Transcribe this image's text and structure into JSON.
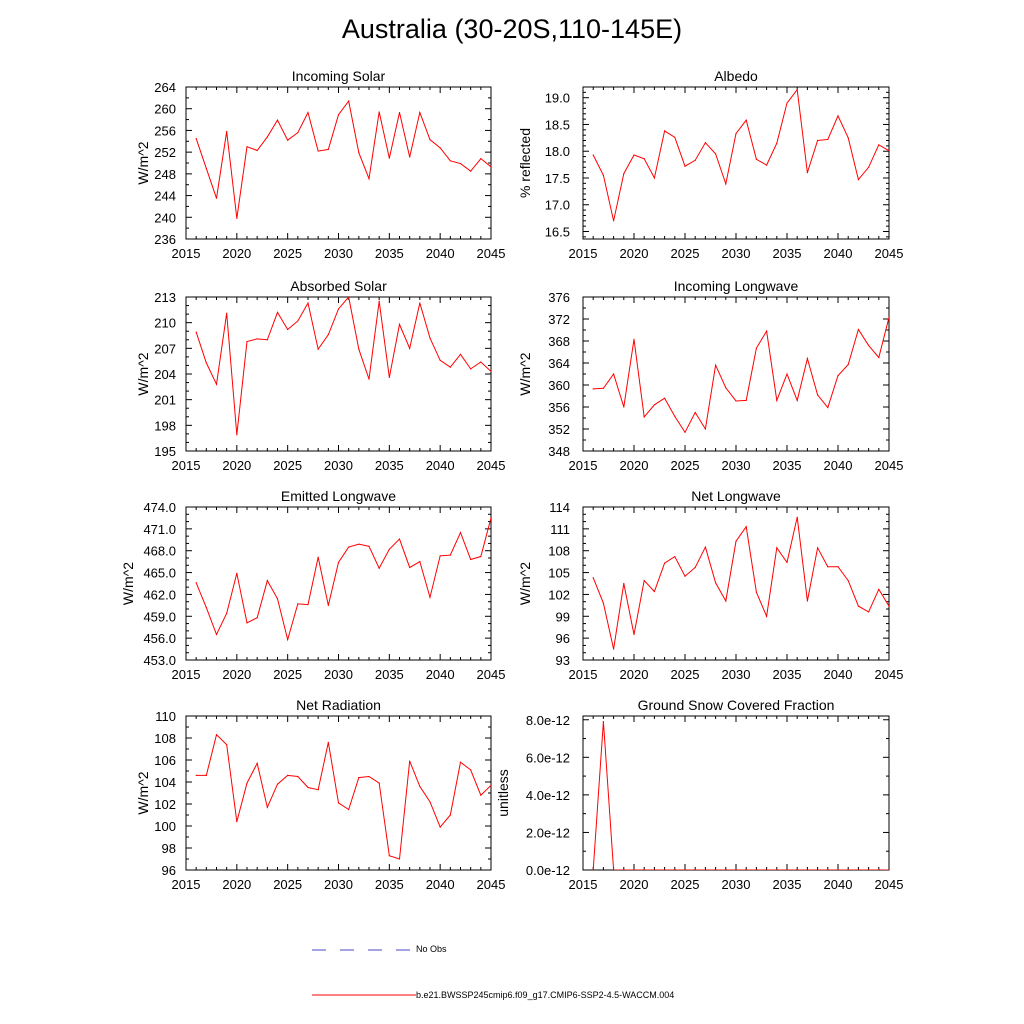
{
  "title": "Australia (30-20S,110-145E)",
  "legend": {
    "obs_label": "No Obs",
    "model_label": "b.e21.BWSSP245cmip6.f09_g17.CMIP6-SSP2-4.5-WACCM.004",
    "obs_color": "#4a4ac8",
    "model_color": "#ff0000"
  },
  "chart_data": [
    {
      "type": "line",
      "title": "Incoming Solar",
      "ylabel": "W/m^2",
      "x": [
        2016,
        2017,
        2018,
        2019,
        2020,
        2021,
        2022,
        2023,
        2024,
        2025,
        2026,
        2027,
        2028,
        2029,
        2030,
        2031,
        2032,
        2033,
        2034,
        2035,
        2036,
        2037,
        2038,
        2039,
        2040,
        2041,
        2042,
        2043,
        2044,
        2045
      ],
      "series": [
        {
          "values": [
            254.5,
            249,
            243.5,
            255.8,
            239.8,
            253,
            252.3,
            254.8,
            257.9,
            254.2,
            255.6,
            259.3,
            252.2,
            252.5,
            258.9,
            261.4,
            251.9,
            247.1,
            259.4,
            250.9,
            259.3,
            251.1,
            259.3,
            254.3,
            252.8,
            250.4,
            249.9,
            248.5,
            250.8,
            249.3
          ]
        }
      ],
      "xlim": [
        2015,
        2045
      ],
      "ylim": [
        236,
        264
      ],
      "xticks": [
        "2015",
        "2020",
        "2025",
        "2030",
        "2035",
        "2040",
        "2045"
      ],
      "yticks": [
        "236",
        "240",
        "244",
        "248",
        "252",
        "256",
        "260",
        "264"
      ],
      "yminor": 1,
      "xminor": 4
    },
    {
      "type": "line",
      "title": "Albedo",
      "ylabel": "% reflected",
      "x": [
        2016,
        2017,
        2018,
        2019,
        2020,
        2021,
        2022,
        2023,
        2024,
        2025,
        2026,
        2027,
        2028,
        2029,
        2030,
        2031,
        2032,
        2033,
        2034,
        2035,
        2036,
        2037,
        2038,
        2039,
        2040,
        2041,
        2042,
        2043,
        2044,
        2045
      ],
      "series": [
        {
          "values": [
            17.93,
            17.55,
            16.7,
            17.58,
            17.93,
            17.86,
            17.5,
            18.38,
            18.26,
            17.72,
            17.83,
            18.16,
            17.95,
            17.39,
            18.33,
            18.58,
            17.85,
            17.74,
            18.15,
            18.9,
            19.15,
            17.6,
            18.2,
            18.22,
            18.66,
            18.25,
            17.47,
            17.7,
            18.12,
            18.01
          ]
        }
      ],
      "xlim": [
        2015,
        2045
      ],
      "ylim": [
        16.36,
        19.2
      ],
      "xticks": [
        "2015",
        "2020",
        "2025",
        "2030",
        "2035",
        "2040",
        "2045"
      ],
      "yticks": [
        "16.5",
        "17.0",
        "17.5",
        "18.0",
        "18.5",
        "19.0"
      ],
      "yminor": 4,
      "xminor": 4
    },
    {
      "type": "line",
      "title": "Absorbed Solar",
      "ylabel": "W/m^2",
      "x": [
        2016,
        2017,
        2018,
        2019,
        2020,
        2021,
        2022,
        2023,
        2024,
        2025,
        2026,
        2027,
        2028,
        2029,
        2030,
        2031,
        2032,
        2033,
        2034,
        2035,
        2036,
        2037,
        2038,
        2039,
        2040,
        2041,
        2042,
        2043,
        2044,
        2045
      ],
      "series": [
        {
          "values": [
            208.9,
            205.3,
            202.8,
            211.1,
            196.9,
            207.8,
            208.1,
            208,
            211.2,
            209.2,
            210.2,
            212.3,
            206.9,
            208.6,
            211.6,
            213,
            206.9,
            203.4,
            212.5,
            203.6,
            209.8,
            207,
            212.3,
            208.2,
            205.6,
            204.8,
            206.3,
            204.6,
            205.4,
            204.3
          ]
        }
      ],
      "xlim": [
        2015,
        2045
      ],
      "ylim": [
        195,
        213
      ],
      "xticks": [
        "2015",
        "2020",
        "2025",
        "2030",
        "2035",
        "2040",
        "2045"
      ],
      "yticks": [
        "195",
        "198",
        "201",
        "204",
        "207",
        "210",
        "213"
      ],
      "yminor": 2,
      "xminor": 4
    },
    {
      "type": "line",
      "title": "Incoming Longwave",
      "ylabel": "W/m^2",
      "x": [
        2016,
        2017,
        2018,
        2019,
        2020,
        2021,
        2022,
        2023,
        2024,
        2025,
        2026,
        2027,
        2028,
        2029,
        2030,
        2031,
        2032,
        2033,
        2034,
        2035,
        2036,
        2037,
        2038,
        2039,
        2040,
        2041,
        2042,
        2043,
        2044,
        2045
      ],
      "series": [
        {
          "values": [
            359.3,
            359.4,
            362,
            356,
            368.3,
            354.2,
            356.4,
            357.6,
            354.3,
            351.4,
            355,
            352,
            363.6,
            359.5,
            357.1,
            357.2,
            366.7,
            369.8,
            357.2,
            362,
            357.2,
            364.8,
            358.2,
            355.9,
            361.7,
            363.7,
            370.1,
            367.2,
            365,
            372.3
          ]
        }
      ],
      "xlim": [
        2015,
        2045
      ],
      "ylim": [
        348,
        376
      ],
      "xticks": [
        "2015",
        "2020",
        "2025",
        "2030",
        "2035",
        "2040",
        "2045"
      ],
      "yticks": [
        "348",
        "352",
        "356",
        "360",
        "364",
        "368",
        "372",
        "376"
      ],
      "yminor": 1,
      "xminor": 4
    },
    {
      "type": "line",
      "title": "Emitted Longwave",
      "ylabel": "W/m^2",
      "x": [
        2016,
        2017,
        2018,
        2019,
        2020,
        2021,
        2022,
        2023,
        2024,
        2025,
        2026,
        2027,
        2028,
        2029,
        2030,
        2031,
        2032,
        2033,
        2034,
        2035,
        2036,
        2037,
        2038,
        2039,
        2040,
        2041,
        2042,
        2043,
        2044,
        2045
      ],
      "series": [
        {
          "values": [
            463.6,
            460.2,
            456.5,
            459.4,
            464.9,
            458.1,
            458.8,
            463.9,
            461.4,
            455.8,
            460.7,
            460.6,
            467.1,
            460.5,
            466.4,
            468.5,
            468.9,
            468.6,
            465.6,
            468.2,
            469.6,
            465.7,
            466.5,
            461.6,
            467.3,
            467.4,
            470.5,
            466.8,
            467.2,
            472.5
          ]
        }
      ],
      "xlim": [
        2015,
        2045
      ],
      "ylim": [
        453,
        474
      ],
      "xticks": [
        "2015",
        "2020",
        "2025",
        "2030",
        "2035",
        "2040",
        "2045"
      ],
      "yticks": [
        "453.0",
        "456.0",
        "459.0",
        "462.0",
        "465.0",
        "468.0",
        "471.0",
        "474.0"
      ],
      "yminor": 2,
      "xminor": 4
    },
    {
      "type": "line",
      "title": "Net Longwave",
      "ylabel": "W/m^2",
      "x": [
        2016,
        2017,
        2018,
        2019,
        2020,
        2021,
        2022,
        2023,
        2024,
        2025,
        2026,
        2027,
        2028,
        2029,
        2030,
        2031,
        2032,
        2033,
        2034,
        2035,
        2036,
        2037,
        2038,
        2039,
        2040,
        2041,
        2042,
        2043,
        2044,
        2045
      ],
      "series": [
        {
          "values": [
            104.3,
            100.8,
            94.5,
            103.5,
            96.5,
            103.9,
            102.4,
            106.3,
            107.2,
            104.5,
            105.7,
            108.5,
            103.6,
            101.1,
            109.3,
            111.3,
            102.3,
            99,
            108.4,
            106.4,
            112.6,
            101.1,
            108.4,
            105.8,
            105.8,
            103.9,
            100.4,
            99.6,
            102.7,
            100.4
          ]
        }
      ],
      "xlim": [
        2015,
        2045
      ],
      "ylim": [
        93,
        114
      ],
      "xticks": [
        "2015",
        "2020",
        "2025",
        "2030",
        "2035",
        "2040",
        "2045"
      ],
      "yticks": [
        "93",
        "96",
        "99",
        "102",
        "105",
        "108",
        "111",
        "114"
      ],
      "yminor": 2,
      "xminor": 4
    },
    {
      "type": "line",
      "title": "Net Radiation",
      "ylabel": "W/m^2",
      "x": [
        2016,
        2017,
        2018,
        2019,
        2020,
        2021,
        2022,
        2023,
        2024,
        2025,
        2026,
        2027,
        2028,
        2029,
        2030,
        2031,
        2032,
        2033,
        2034,
        2035,
        2036,
        2037,
        2038,
        2039,
        2040,
        2041,
        2042,
        2043,
        2044,
        2045
      ],
      "series": [
        {
          "values": [
            104.6,
            104.6,
            108.3,
            107.4,
            100.4,
            103.9,
            105.7,
            101.7,
            103.8,
            104.6,
            104.5,
            103.5,
            103.3,
            107.6,
            102.1,
            101.5,
            104.4,
            104.5,
            103.9,
            97.3,
            97,
            105.9,
            103.6,
            102.2,
            99.9,
            101,
            105.8,
            105.1,
            102.8,
            103.7
          ]
        }
      ],
      "xlim": [
        2015,
        2045
      ],
      "ylim": [
        96,
        110
      ],
      "xticks": [
        "2015",
        "2020",
        "2025",
        "2030",
        "2035",
        "2040",
        "2045"
      ],
      "yticks": [
        "96",
        "98",
        "100",
        "102",
        "104",
        "106",
        "108",
        "110"
      ],
      "yminor": 1,
      "xminor": 4
    },
    {
      "type": "line",
      "title": "Ground Snow Covered Fraction",
      "ylabel": "unitless",
      "x": [
        2016,
        2017,
        2018,
        2019,
        2020,
        2021,
        2022,
        2023,
        2024,
        2025,
        2026,
        2027,
        2028,
        2029,
        2030,
        2031,
        2032,
        2033,
        2034,
        2035,
        2036,
        2037,
        2038,
        2039,
        2040,
        2041,
        2042,
        2043,
        2044,
        2045
      ],
      "series": [
        {
          "values": [
            0,
            7.9e-12,
            0,
            0,
            0,
            0,
            0,
            0,
            0,
            0,
            0,
            0,
            0,
            0,
            0,
            0,
            0,
            0,
            0,
            0,
            0,
            0,
            0,
            0,
            0,
            0,
            0,
            0,
            0,
            0
          ]
        }
      ],
      "xlim": [
        2015,
        2045
      ],
      "ylim": [
        0,
        8.2e-12
      ],
      "xticks": [
        "2015",
        "2020",
        "2025",
        "2030",
        "2035",
        "2040",
        "2045"
      ],
      "yticks": [
        "0.0e-12",
        "2.0e-12",
        "4.0e-12",
        "6.0e-12",
        "8.0e-12"
      ],
      "yminor": 1,
      "xminor": 4
    }
  ]
}
